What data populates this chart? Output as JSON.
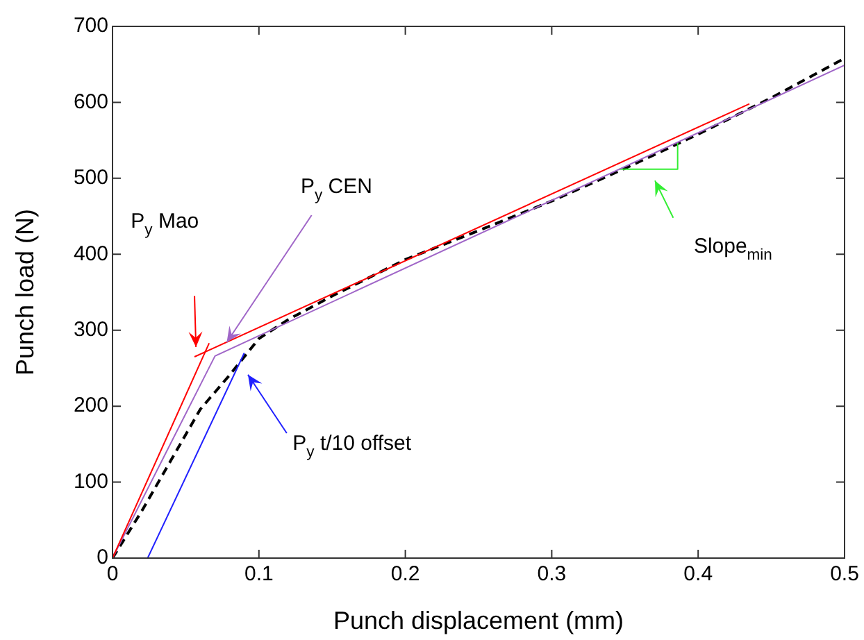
{
  "chart_data": {
    "type": "line",
    "xlabel": "Punch displacement (mm)",
    "ylabel": "Punch load (N)",
    "xlim": [
      0,
      0.5
    ],
    "xticks": [
      0,
      0.1,
      0.2,
      0.3,
      0.4,
      0.5
    ],
    "ylim": [
      0,
      700
    ],
    "yticks": [
      0,
      100,
      200,
      300,
      400,
      500,
      600,
      700
    ],
    "grid": false,
    "legend": false,
    "marker": "none",
    "series": [
      {
        "color": "#ff0000",
        "x": [
          0,
          0.066
        ],
        "values": [
          0,
          283
        ]
      },
      {
        "color": "#ff0000",
        "x": [
          0.056,
          0.435
        ],
        "values": [
          265,
          598
        ]
      },
      {
        "color": "#a066c8",
        "x": [
          0,
          0.07,
          0.5
        ],
        "values": [
          0,
          266,
          649
        ]
      },
      {
        "color": "#2020ff",
        "x": [
          0.024,
          0.09
        ],
        "values": [
          0,
          270
        ]
      },
      {
        "color": "#33ee33",
        "x": [
          0.346,
          0.386,
          0.386
        ],
        "values": [
          512,
          512,
          547
        ]
      },
      {
        "color": "#000000",
        "line_style": "dashed",
        "x": [
          0,
          0.02,
          0.04,
          0.06,
          0.08,
          0.1,
          0.12,
          0.15,
          0.2,
          0.25,
          0.3,
          0.35,
          0.4,
          0.45,
          0.5
        ],
        "values": [
          0,
          62,
          129,
          196,
          241,
          289,
          314,
          345,
          393,
          431,
          470,
          513,
          558,
          606,
          658
        ]
      }
    ],
    "annotations": [
      "P$_{y}$ Mao",
      {
        "text": "P$_{y}$ CEN",
        "x": 0.078,
        "y": 284
      },
      "P$_{y}$ t/10 offset",
      "Slope$_{min}$"
    ]
  }
}
